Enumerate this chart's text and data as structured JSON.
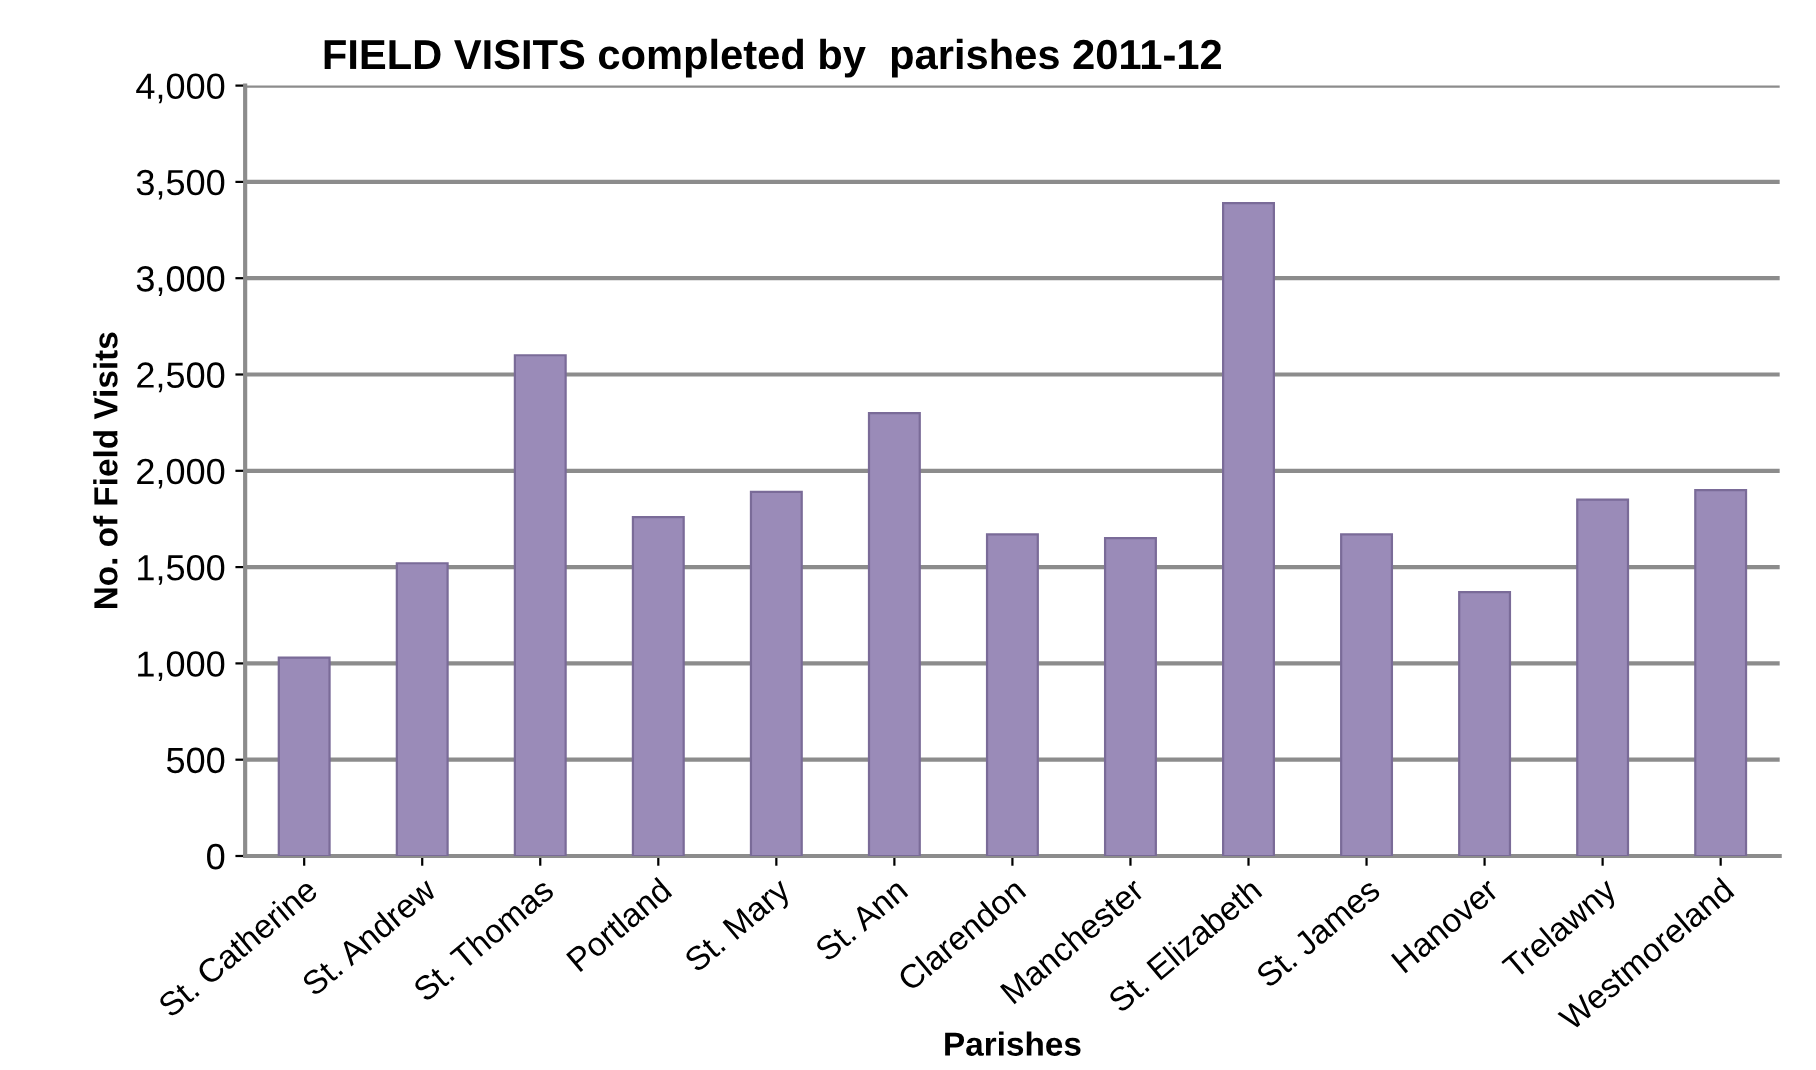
{
  "chart_data": {
    "type": "bar",
    "title": "FIELD VISITS completed by  parishes 2011-12",
    "xlabel": "Parishes",
    "ylabel": "No. of Field Visits",
    "categories": [
      "St. Catherine",
      "St. Andrew",
      "St. Thomas",
      "Portland",
      "St. Mary",
      "St. Ann",
      "Clarendon",
      "Manchester",
      "St. Elizabeth",
      "St. James",
      "Hanover",
      "Trelawny",
      "Westmoreland"
    ],
    "values": [
      1030,
      1520,
      2600,
      1760,
      1890,
      2300,
      1670,
      1650,
      3390,
      1670,
      1370,
      1850,
      1900
    ],
    "color": "#9a8bb8",
    "ylim": [
      0,
      4000
    ],
    "yticks": [
      {
        "value": 0,
        "label": "0"
      },
      {
        "value": 500,
        "label": "500"
      },
      {
        "value": 1000,
        "label": "1,000"
      },
      {
        "value": 1500,
        "label": "1,500"
      },
      {
        "value": 2000,
        "label": "2,000"
      },
      {
        "value": 2500,
        "label": "2,500"
      },
      {
        "value": 3000,
        "label": "3,000"
      },
      {
        "value": 3500,
        "label": "3,500"
      },
      {
        "value": 4000,
        "label": "4,000"
      }
    ],
    "grid": "y"
  }
}
